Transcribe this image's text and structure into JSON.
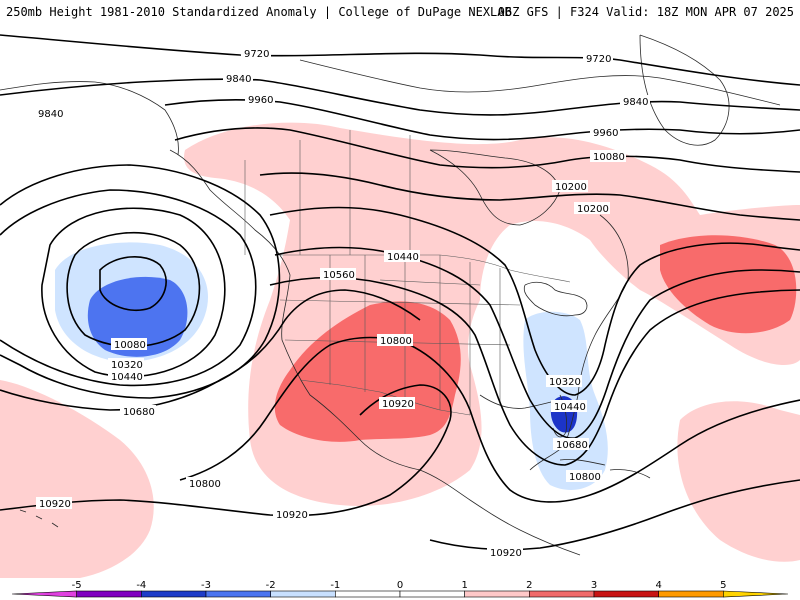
{
  "header": {
    "left_title": "250mb Height 1981-2010 Standardized Anomaly | College of DuPage NEXLAB",
    "right_title": "06Z GFS | F324 Valid: 18Z MON APR 07 2025"
  },
  "contour_labels": [
    {
      "id": "c9720a",
      "text": "9720"
    },
    {
      "id": "c9720b",
      "text": "9720"
    },
    {
      "id": "c9840a",
      "text": "9840"
    },
    {
      "id": "c9840b",
      "text": "9840"
    },
    {
      "id": "c9840c",
      "text": "9840"
    },
    {
      "id": "c9960a",
      "text": "9960"
    },
    {
      "id": "c9960b",
      "text": "9960"
    },
    {
      "id": "c10080a",
      "text": "10080"
    },
    {
      "id": "c10080b",
      "text": "10080"
    },
    {
      "id": "c10200a",
      "text": "10200"
    },
    {
      "id": "c10200b",
      "text": "10200"
    },
    {
      "id": "c10320a",
      "text": "10320"
    },
    {
      "id": "c10320b",
      "text": "10320"
    },
    {
      "id": "c10440a",
      "text": "10440"
    },
    {
      "id": "c10440b",
      "text": "10440"
    },
    {
      "id": "c10440c",
      "text": "10440"
    },
    {
      "id": "c10560a",
      "text": "10560"
    },
    {
      "id": "c10680a",
      "text": "10680"
    },
    {
      "id": "c10680b",
      "text": "10680"
    },
    {
      "id": "c10800a",
      "text": "10800"
    },
    {
      "id": "c10800b",
      "text": "10800"
    },
    {
      "id": "c10800c",
      "text": "10800"
    },
    {
      "id": "c10920a",
      "text": "10920"
    },
    {
      "id": "c10920b",
      "text": "10920"
    },
    {
      "id": "c10920c",
      "text": "10920"
    },
    {
      "id": "c10920d",
      "text": "10920"
    }
  ],
  "colorbar": {
    "ticks": [
      "-5",
      "-4",
      "-3",
      "-2",
      "-1",
      "0",
      "1",
      "2",
      "3",
      "4",
      "5"
    ],
    "colors": [
      "#e040e0",
      "#8000c0",
      "#1e3cc8",
      "#4a74f0",
      "#c8e0ff",
      "#ffffff",
      "#ffffff",
      "#ffc8c8",
      "#f06a6a",
      "#c81414",
      "#ff9a00",
      "#ffd400"
    ]
  },
  "anomaly_colors": {
    "light_pink": "#ffd0d0",
    "pink_red": "#f86b6b",
    "light_blue": "#cfe4ff",
    "mid_blue": "#4d74f0",
    "dark_blue": "#1c34c8"
  }
}
